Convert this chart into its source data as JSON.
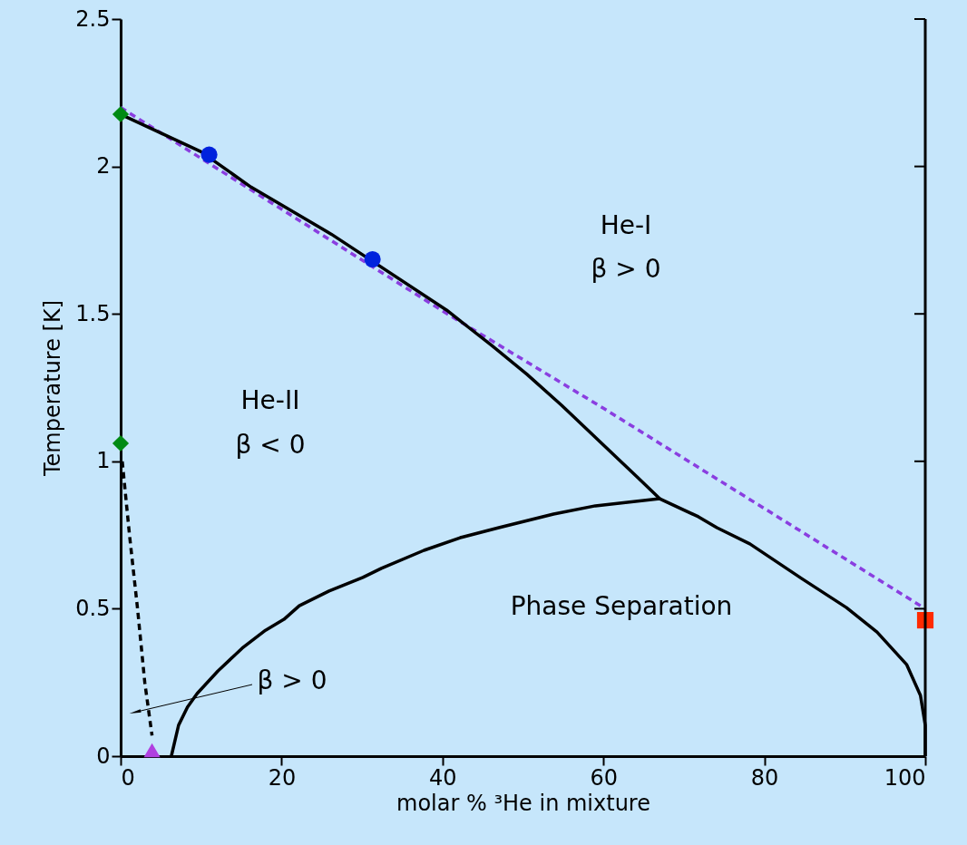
{
  "chart_data": {
    "type": "line",
    "xlabel": "molar % ³He in mixture",
    "ylabel": "Temperature [K]",
    "xlim": [
      0,
      100
    ],
    "xticks": [
      0,
      20,
      40,
      60,
      80,
      100
    ],
    "ylim": [
      0,
      2.5
    ],
    "yticks": [
      0,
      0.5,
      1,
      1.5,
      2,
      2.5
    ],
    "grid": false,
    "series": [
      {
        "color": "#8a3ee0",
        "line_style": "dashed",
        "marker": "none",
        "x": [
          0,
          40,
          60,
          100
        ],
        "values": [
          2.2,
          1.51,
          1.18,
          0.5
        ]
      },
      {
        "color": "#000000",
        "line_style": "solid",
        "marker": "none",
        "x": [
          0,
          10,
          16.2,
          26.2,
          40.5,
          46.1,
          50.5,
          54.8,
          64.3,
          67
        ],
        "values": [
          2.177,
          2.05,
          1.93,
          1.77,
          1.513,
          1.393,
          1.295,
          1.19,
          0.944,
          0.873
        ]
      },
      {
        "color": "#000000",
        "line_style": "solid",
        "marker": "none",
        "x": [
          6.3,
          7.2,
          8.3,
          9.5,
          12.1,
          15.1,
          18,
          20.3,
          22.2,
          25.9,
          30.1,
          32.4,
          37.7,
          42.2,
          47,
          53.8,
          59,
          67,
          71.8,
          74.1,
          78.2,
          84.6,
          90.2,
          94,
          97.7,
          99.4,
          100,
          100
        ],
        "values": [
          0,
          0.105,
          0.166,
          0.212,
          0.289,
          0.366,
          0.427,
          0.464,
          0.51,
          0.56,
          0.606,
          0.637,
          0.698,
          0.741,
          0.775,
          0.821,
          0.849,
          0.873,
          0.812,
          0.775,
          0.72,
          0.603,
          0.504,
          0.421,
          0.31,
          0.206,
          0.105,
          0
        ]
      },
      {
        "color": "#000000",
        "line_style": "dashed",
        "marker": "none",
        "x": [
          0.2,
          1.1,
          2.1,
          3.0,
          3.9
        ],
        "values": [
          1.0,
          0.75,
          0.5,
          0.25,
          0.07
        ]
      },
      {
        "type": "scatter",
        "color": "#008a14",
        "marker": "diamond",
        "x": [
          0,
          0
        ],
        "values": [
          2.177,
          1.061
        ]
      },
      {
        "type": "scatter",
        "color": "#0022dd",
        "marker": "circle",
        "x": [
          11,
          31.3
        ],
        "values": [
          2.04,
          1.685
        ]
      },
      {
        "type": "scatter",
        "color": "#ff2a00",
        "marker": "square",
        "x": [
          100
        ],
        "values": [
          0.461
        ]
      },
      {
        "type": "scatter",
        "color": "#b040e0",
        "marker": "triangle",
        "x": [
          3.9
        ],
        "values": [
          0.02
        ]
      }
    ],
    "annotations": [
      "He-I",
      "β > 0",
      "He-II",
      "β < 0",
      "Phase Separation",
      "β > 0"
    ]
  }
}
